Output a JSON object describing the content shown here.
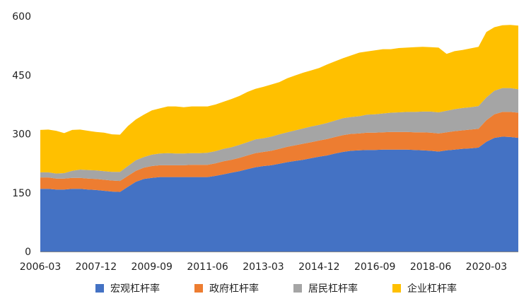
{
  "chart_data": {
    "type": "area",
    "stacked": true,
    "ylim": [
      0,
      600
    ],
    "y_ticks": [
      0,
      150,
      300,
      450,
      600
    ],
    "x_tick_labels": [
      "2006-03",
      "2007-12",
      "2009-09",
      "2011-06",
      "2013-03",
      "2014-12",
      "2016-09",
      "2018-06",
      "2020-03"
    ],
    "x": [
      "2006-03",
      "2006-06",
      "2006-09",
      "2006-12",
      "2007-03",
      "2007-06",
      "2007-09",
      "2007-12",
      "2008-03",
      "2008-06",
      "2008-09",
      "2008-12",
      "2009-03",
      "2009-06",
      "2009-09",
      "2009-12",
      "2010-03",
      "2010-06",
      "2010-09",
      "2010-12",
      "2011-03",
      "2011-06",
      "2011-09",
      "2011-12",
      "2012-03",
      "2012-06",
      "2012-09",
      "2012-12",
      "2013-03",
      "2013-06",
      "2013-09",
      "2013-12",
      "2014-03",
      "2014-06",
      "2014-09",
      "2014-12",
      "2015-03",
      "2015-06",
      "2015-09",
      "2015-12",
      "2016-03",
      "2016-06",
      "2016-09",
      "2016-12",
      "2017-03",
      "2017-06",
      "2017-09",
      "2017-12",
      "2018-03",
      "2018-06",
      "2018-09",
      "2018-12",
      "2019-03",
      "2019-06",
      "2019-09",
      "2019-12",
      "2020-03",
      "2020-06",
      "2020-09",
      "2020-12",
      "2021-03"
    ],
    "grid": false,
    "legend_position": "bottom",
    "series": [
      {
        "name": "宏观杠杆率",
        "color": "#4472C4",
        "values": [
          160,
          160,
          158,
          158,
          160,
          160,
          158,
          157,
          155,
          153,
          152,
          165,
          178,
          185,
          188,
          190,
          190,
          190,
          190,
          190,
          190,
          190,
          193,
          197,
          201,
          205,
          210,
          215,
          218,
          220,
          224,
          228,
          231,
          234,
          238,
          242,
          245,
          250,
          254,
          257,
          258,
          259,
          259,
          260,
          260,
          260,
          260,
          259,
          258,
          257,
          255,
          258,
          260,
          262,
          263,
          265,
          280,
          290,
          293,
          292,
          290
        ]
      },
      {
        "name": "政府杠杆率",
        "color": "#ED7D31",
        "values": [
          29,
          29,
          28,
          28,
          28,
          28,
          28,
          28,
          28,
          28,
          28,
          28,
          28,
          29,
          30,
          30,
          30,
          30,
          30,
          31,
          31,
          31,
          32,
          33,
          33,
          34,
          35,
          36,
          36,
          37,
          38,
          39,
          40,
          41,
          41,
          41,
          42,
          42,
          43,
          43,
          43,
          44,
          44,
          44,
          45,
          45,
          45,
          45,
          46,
          46,
          46,
          46,
          47,
          47,
          48,
          48,
          55,
          60,
          63,
          64,
          64
        ]
      },
      {
        "name": "居民杠杆率",
        "color": "#A5A5A5",
        "values": [
          13,
          13,
          13,
          14,
          18,
          21,
          22,
          22,
          22,
          22,
          23,
          25,
          27,
          27,
          29,
          30,
          31,
          30,
          30,
          30,
          30,
          31,
          31,
          32,
          32,
          33,
          34,
          35,
          35,
          36,
          37,
          37,
          38,
          39,
          40,
          40,
          41,
          42,
          43,
          43,
          44,
          46,
          47,
          48,
          49,
          50,
          51,
          52,
          53,
          54,
          54,
          55,
          56,
          57,
          57,
          58,
          58,
          60,
          61,
          61,
          60
        ]
      },
      {
        "name": "企业杠杆率",
        "color": "#FFC000",
        "values": [
          108,
          109,
          109,
          102,
          104,
          102,
          100,
          98,
          98,
          96,
          95,
          102,
          104,
          108,
          113,
          115,
          119,
          120,
          118,
          119,
          119,
          118,
          119,
          120,
          123,
          125,
          128,
          129,
          131,
          133,
          133,
          138,
          140,
          142,
          143,
          145,
          149,
          151,
          153,
          157,
          162,
          161,
          163,
          164,
          162,
          164,
          164,
          165,
          165,
          164,
          165,
          145,
          148,
          148,
          150,
          151,
          167,
          162,
          160,
          161,
          162
        ]
      }
    ]
  }
}
